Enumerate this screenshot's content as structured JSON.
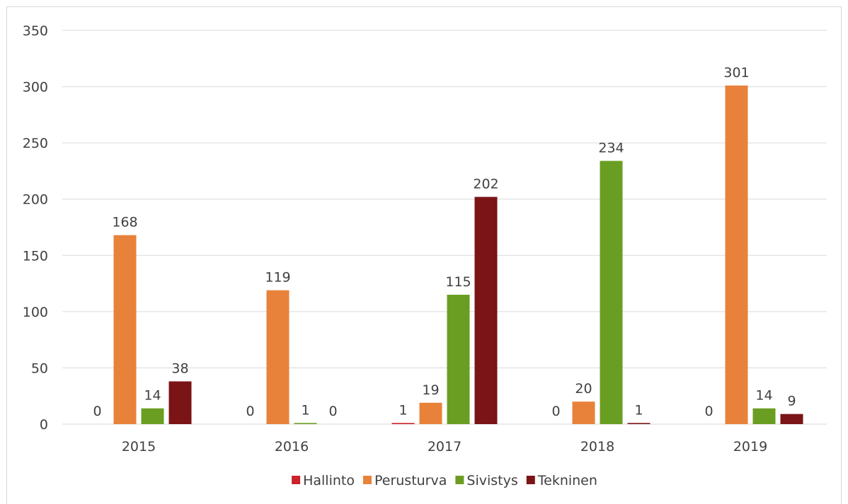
{
  "chart_data": {
    "type": "bar",
    "categories": [
      "2015",
      "2016",
      "2017",
      "2018",
      "2019"
    ],
    "series": [
      {
        "name": "Hallinto",
        "color": "#cc2229",
        "values": [
          0,
          0,
          1,
          0,
          0
        ]
      },
      {
        "name": "Perusturva",
        "color": "#e8823a",
        "values": [
          168,
          119,
          19,
          20,
          301
        ]
      },
      {
        "name": "Sivistys",
        "color": "#6a9e22",
        "values": [
          14,
          1,
          115,
          234,
          14
        ]
      },
      {
        "name": "Tekninen",
        "color": "#7b1416",
        "values": [
          38,
          0,
          202,
          1,
          9
        ]
      }
    ],
    "yticks": [
      "0",
      "50",
      "100",
      "150",
      "200",
      "250",
      "300",
      "350"
    ],
    "ylim": [
      0,
      350
    ],
    "grid": true,
    "legend_position": "bottom",
    "title": "",
    "xlabel": "",
    "ylabel": ""
  }
}
